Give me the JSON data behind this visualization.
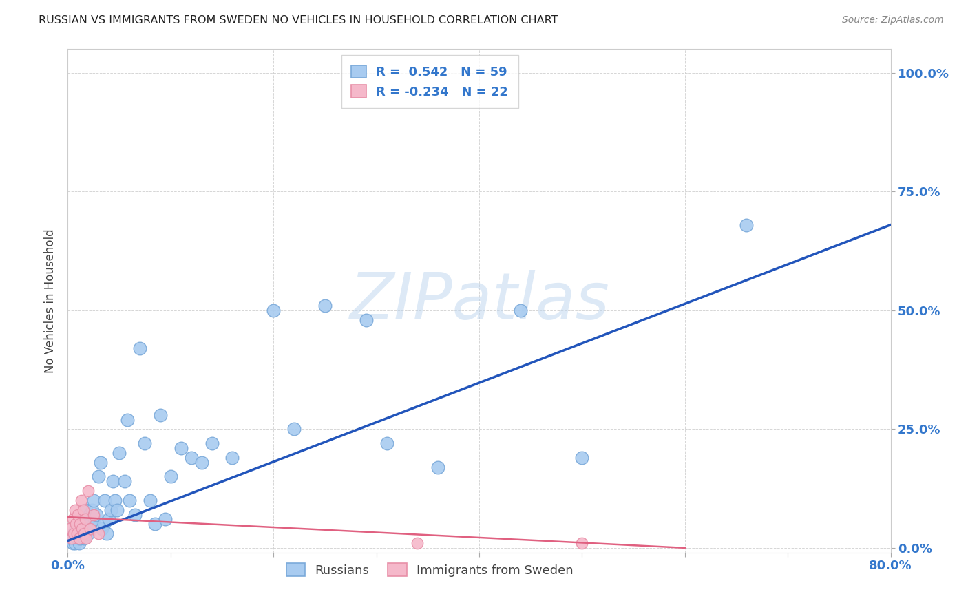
{
  "title": "RUSSIAN VS IMMIGRANTS FROM SWEDEN NO VEHICLES IN HOUSEHOLD CORRELATION CHART",
  "source": "Source: ZipAtlas.com",
  "ylabel": "No Vehicles in Household",
  "watermark": "ZIPatlas",
  "xlim": [
    0,
    0.8
  ],
  "ylim": [
    -0.01,
    1.05
  ],
  "xticks": [
    0.0,
    0.1,
    0.2,
    0.3,
    0.4,
    0.5,
    0.6,
    0.7,
    0.8
  ],
  "ytick_labels": [
    "0.0%",
    "25.0%",
    "50.0%",
    "75.0%",
    "100.0%"
  ],
  "yticks": [
    0.0,
    0.25,
    0.5,
    0.75,
    1.0
  ],
  "blue_color": "#A8CBF0",
  "blue_edge_color": "#7BAADA",
  "pink_color": "#F5B8CA",
  "pink_edge_color": "#E890A8",
  "blue_line_color": "#2255BB",
  "pink_line_color": "#E06080",
  "legend_blue_r": "0.542",
  "legend_blue_n": "59",
  "legend_pink_r": "-0.234",
  "legend_pink_n": "22",
  "legend_russians": "Russians",
  "legend_immigrants": "Immigrants from Sweden",
  "title_color": "#222222",
  "axis_label_color": "#444444",
  "tick_color": "#3377CC",
  "grid_color": "#CCCCCC",
  "blue_scatter_x": [
    0.003,
    0.005,
    0.006,
    0.007,
    0.008,
    0.009,
    0.01,
    0.011,
    0.012,
    0.013,
    0.014,
    0.015,
    0.016,
    0.018,
    0.019,
    0.02,
    0.021,
    0.022,
    0.024,
    0.025,
    0.026,
    0.028,
    0.03,
    0.032,
    0.033,
    0.035,
    0.036,
    0.038,
    0.04,
    0.042,
    0.044,
    0.046,
    0.048,
    0.05,
    0.055,
    0.058,
    0.06,
    0.065,
    0.07,
    0.075,
    0.08,
    0.085,
    0.09,
    0.095,
    0.1,
    0.11,
    0.12,
    0.13,
    0.14,
    0.16,
    0.2,
    0.22,
    0.25,
    0.29,
    0.31,
    0.36,
    0.44,
    0.5,
    0.66
  ],
  "blue_scatter_y": [
    0.02,
    0.01,
    0.03,
    0.01,
    0.04,
    0.02,
    0.03,
    0.01,
    0.02,
    0.05,
    0.03,
    0.06,
    0.02,
    0.08,
    0.04,
    0.03,
    0.07,
    0.05,
    0.08,
    0.1,
    0.06,
    0.07,
    0.15,
    0.18,
    0.04,
    0.05,
    0.1,
    0.03,
    0.06,
    0.08,
    0.14,
    0.1,
    0.08,
    0.2,
    0.14,
    0.27,
    0.1,
    0.07,
    0.42,
    0.22,
    0.1,
    0.05,
    0.28,
    0.06,
    0.15,
    0.21,
    0.19,
    0.18,
    0.22,
    0.19,
    0.5,
    0.25,
    0.51,
    0.48,
    0.22,
    0.17,
    0.5,
    0.19,
    0.68
  ],
  "pink_scatter_x": [
    0.002,
    0.004,
    0.005,
    0.006,
    0.007,
    0.008,
    0.009,
    0.01,
    0.011,
    0.012,
    0.013,
    0.014,
    0.015,
    0.016,
    0.017,
    0.018,
    0.02,
    0.022,
    0.025,
    0.03,
    0.34,
    0.5
  ],
  "pink_scatter_y": [
    0.04,
    0.02,
    0.06,
    0.03,
    0.08,
    0.05,
    0.03,
    0.07,
    0.02,
    0.05,
    0.1,
    0.04,
    0.08,
    0.03,
    0.06,
    0.02,
    0.12,
    0.04,
    0.07,
    0.03,
    0.01,
    0.01
  ],
  "blue_line_x": [
    0.0,
    0.8
  ],
  "blue_line_y": [
    0.015,
    0.68
  ],
  "pink_line_x": [
    0.0,
    0.6
  ],
  "pink_line_y": [
    0.065,
    0.0
  ]
}
